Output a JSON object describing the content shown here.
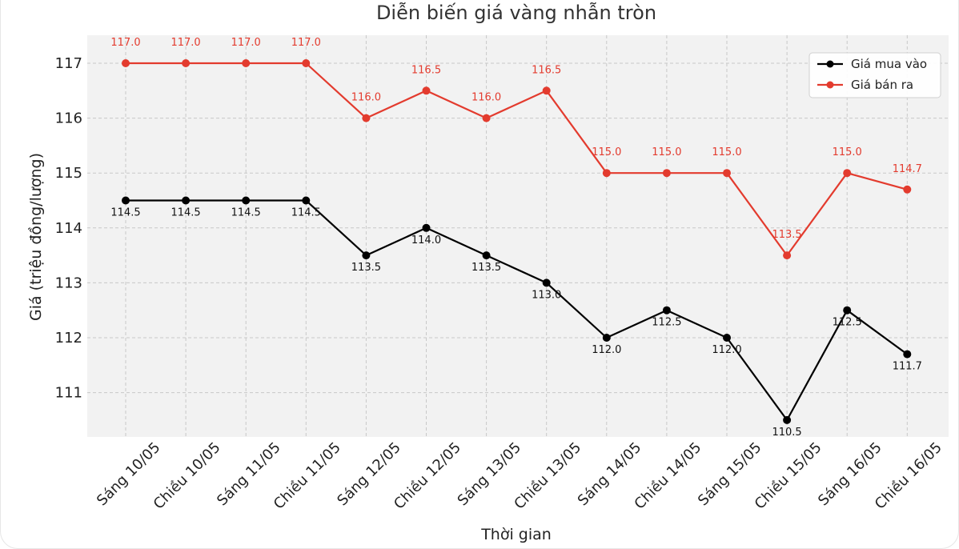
{
  "chart_data": {
    "type": "line",
    "title": "Diễn biến giá vàng nhẫn tròn",
    "xlabel": "Thời gian",
    "ylabel": "Giá (triệu đồng/lượng)",
    "categories": [
      "Sáng 10/05",
      "Chiều 10/05",
      "Sáng 11/05",
      "Chiều 11/05",
      "Sáng 12/05",
      "Chiều 12/05",
      "Sáng 13/05",
      "Chiều 13/05",
      "Sáng 14/05",
      "Chiều 14/05",
      "Sáng 15/05",
      "Chiều 15/05",
      "Sáng 16/05",
      "Chiều 16/05"
    ],
    "series": [
      {
        "name": "Giá mua vào",
        "color": "#000000",
        "values": [
          114.5,
          114.5,
          114.5,
          114.5,
          113.5,
          114.0,
          113.5,
          113.0,
          112.0,
          112.5,
          112.0,
          110.5,
          112.5,
          111.7
        ],
        "labels": [
          "114.5",
          "114.5",
          "114.5",
          "114.5",
          "113.5",
          "114.0",
          "113.5",
          "113.0",
          "112.0",
          "112.5",
          "112.0",
          "110.5",
          "112.5",
          "111.7"
        ]
      },
      {
        "name": "Giá bán ra",
        "color": "#e33b2e",
        "values": [
          117.0,
          117.0,
          117.0,
          117.0,
          116.0,
          116.5,
          116.0,
          116.5,
          115.0,
          115.0,
          115.0,
          113.5,
          115.0,
          114.7
        ],
        "labels": [
          "117.0",
          "117.0",
          "117.0",
          "117.0",
          "116.0",
          "116.5",
          "116.0",
          "116.5",
          "115.0",
          "115.0",
          "115.0",
          "113.5",
          "115.0",
          "114.7"
        ]
      }
    ],
    "yticks": [
      "111",
      "112",
      "113",
      "114",
      "115",
      "116",
      "117"
    ],
    "ylim": [
      110.2,
      117.5
    ],
    "grid": true,
    "legend_position": "top-right",
    "plot_background": "#f2f2f2"
  }
}
